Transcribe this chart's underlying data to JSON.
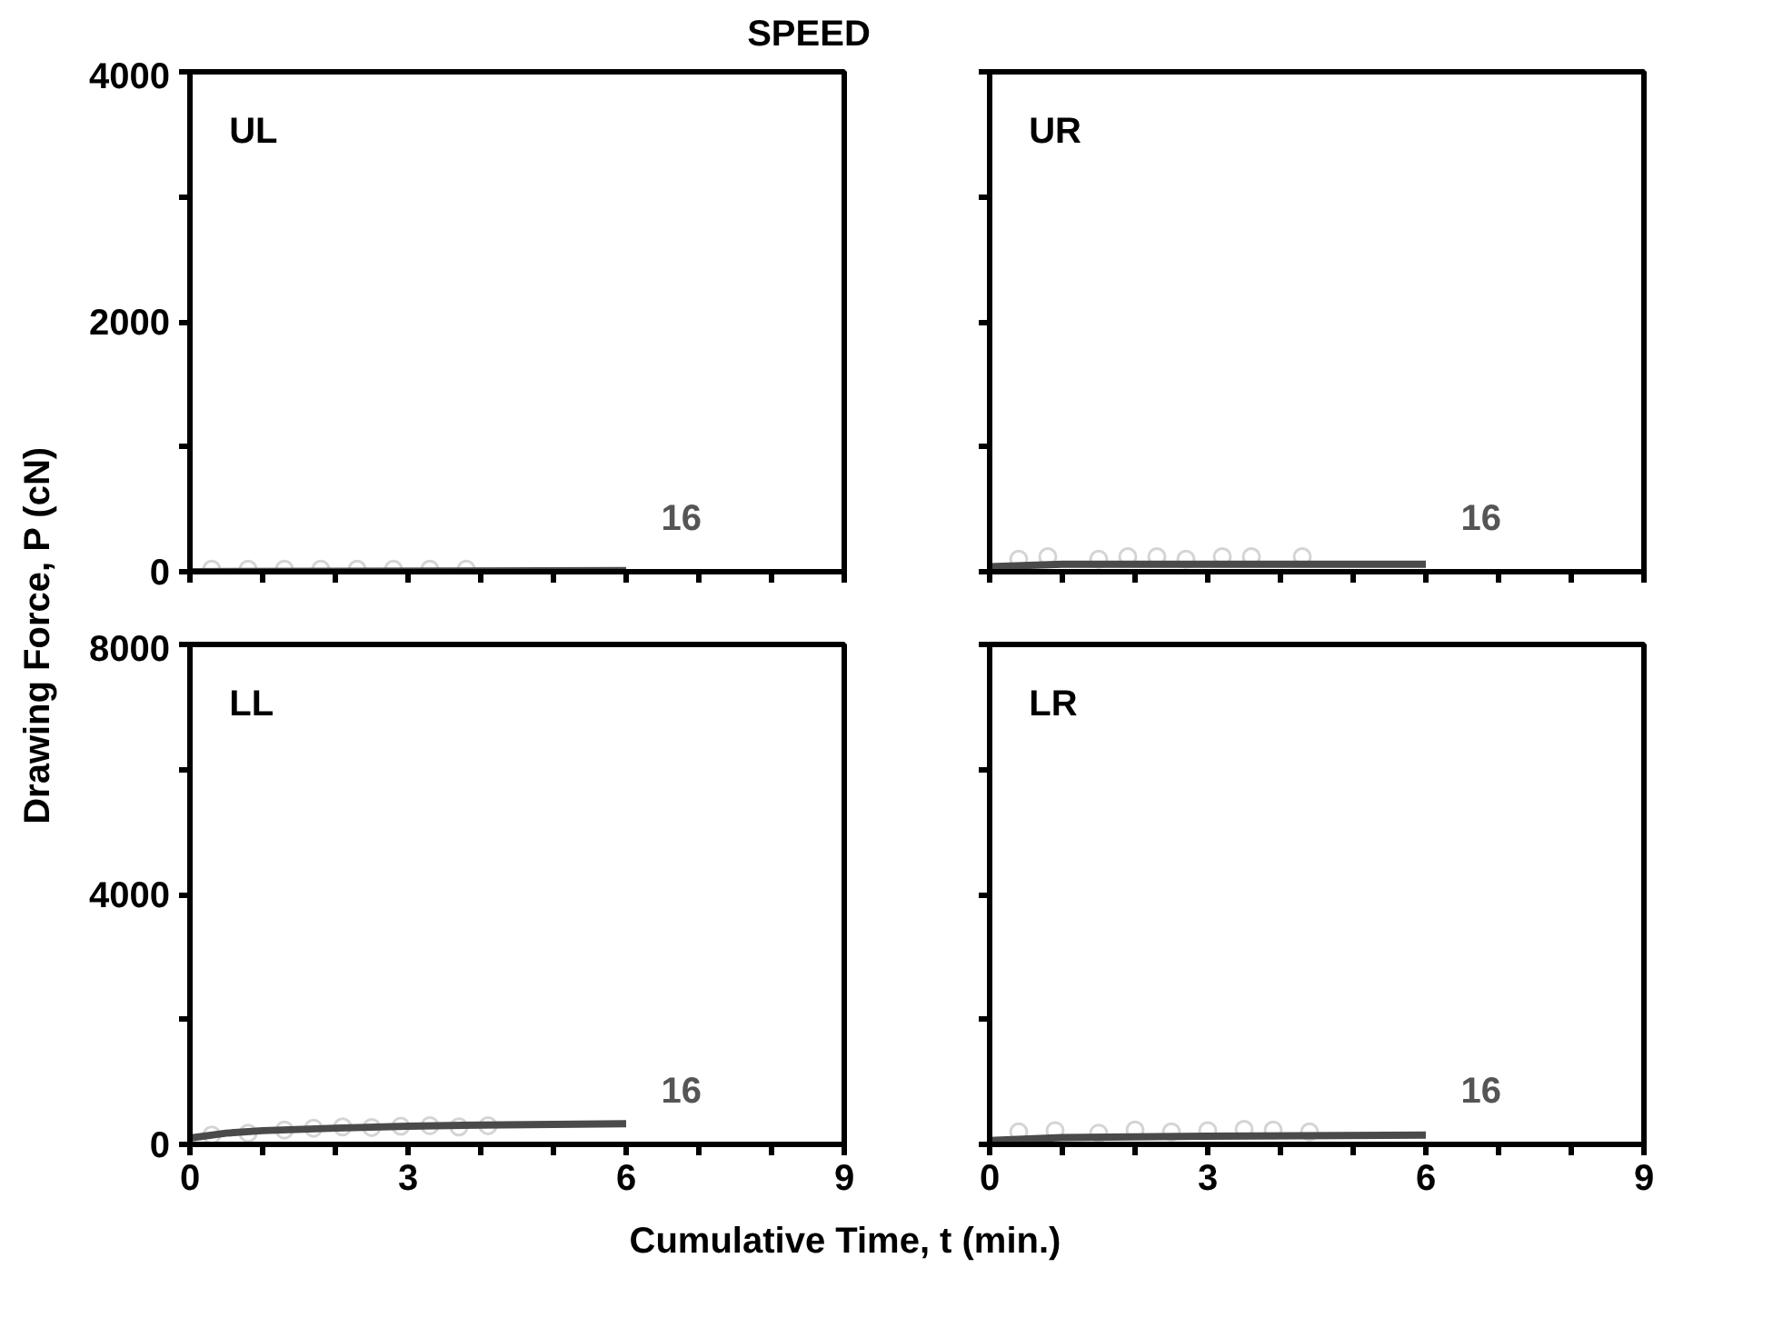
{
  "chart_data": [
    {
      "type": "line",
      "title": "SPEED",
      "ylabel": "Drawing Force, P (cN)",
      "annotations": [
        "UL",
        "16"
      ],
      "tick_labels": "y",
      "grid": false,
      "xlim": [
        0,
        9
      ],
      "ylim": [
        0,
        4000
      ],
      "xticks": [
        0,
        {
          "value": 1,
          "label": null
        },
        {
          "value": 2,
          "label": null
        },
        {
          "value": 3,
          "label": null
        },
        {
          "value": 4,
          "label": null
        },
        {
          "value": 5,
          "label": null
        },
        {
          "value": 6,
          "label": null
        },
        {
          "value": 7,
          "label": null
        },
        {
          "value": 8,
          "label": null
        },
        {
          "value": 9,
          "label": null
        }
      ],
      "yticks": [
        0,
        {
          "value": 1000,
          "label": null
        },
        2000,
        {
          "value": 3000,
          "label": null
        },
        4000
      ],
      "series": [
        {
          "type": "scatter",
          "marker": "circle",
          "color": "#d4d4d4",
          "x": [
            0.3,
            0.8,
            1.3,
            1.8,
            2.3,
            2.8,
            3.3,
            3.8
          ],
          "values": [
            20,
            20,
            20,
            20,
            20,
            20,
            20,
            20
          ]
        },
        {
          "color": "#4a4a4a",
          "x": [
            0,
            6
          ],
          "values": [
            0,
            10
          ]
        }
      ]
    },
    {
      "type": "line",
      "annotations": [
        "UR",
        "16"
      ],
      "tick_labels": false,
      "grid": false,
      "xlim": [
        0,
        9
      ],
      "ylim": [
        0,
        4000
      ],
      "xticks": [
        0,
        {
          "value": 1,
          "label": null
        },
        {
          "value": 2,
          "label": null
        },
        {
          "value": 3,
          "label": null
        },
        {
          "value": 4,
          "label": null
        },
        {
          "value": 5,
          "label": null
        },
        {
          "value": 6,
          "label": null
        },
        {
          "value": 7,
          "label": null
        },
        {
          "value": 8,
          "label": null
        },
        {
          "value": 9,
          "label": null
        }
      ],
      "yticks": [
        0,
        {
          "value": 1000,
          "label": null
        },
        2000,
        {
          "value": 3000,
          "label": null
        },
        4000
      ],
      "series": [
        {
          "type": "scatter",
          "marker": "circle",
          "color": "#d4d4d4",
          "x": [
            0.4,
            0.8,
            1.5,
            1.9,
            2.3,
            2.7,
            3.2,
            3.6,
            4.3
          ],
          "values": [
            100,
            120,
            100,
            120,
            120,
            100,
            120,
            120,
            120
          ]
        },
        {
          "color": "#4a4a4a",
          "x": [
            0,
            1,
            3,
            6
          ],
          "values": [
            40,
            60,
            60,
            60
          ]
        }
      ]
    },
    {
      "type": "line",
      "xlabel": "Cumulative Time, t (min.)",
      "annotations": [
        "LL",
        "16"
      ],
      "grid": false,
      "xlim": [
        0,
        9
      ],
      "ylim": [
        0,
        8000
      ],
      "xticks": [
        0,
        {
          "value": 1,
          "label": null
        },
        {
          "value": 2,
          "label": null
        },
        3,
        {
          "value": 4,
          "label": null
        },
        {
          "value": 5,
          "label": null
        },
        6,
        {
          "value": 7,
          "label": null
        },
        {
          "value": 8,
          "label": null
        },
        9
      ],
      "yticks": [
        0,
        {
          "value": 2000,
          "label": null
        },
        4000,
        {
          "value": 6000,
          "label": null
        },
        8000
      ],
      "series": [
        {
          "type": "scatter",
          "marker": "circle",
          "color": "#d4d4d4",
          "x": [
            0.3,
            0.8,
            1.3,
            1.7,
            2.1,
            2.5,
            2.9,
            3.3,
            3.7,
            4.1
          ],
          "values": [
            150,
            180,
            230,
            260,
            280,
            270,
            290,
            300,
            280,
            300
          ]
        },
        {
          "color": "#4a4a4a",
          "x": [
            0,
            0.5,
            1,
            2,
            3,
            4,
            5,
            6
          ],
          "values": [
            100,
            180,
            220,
            260,
            290,
            310,
            320,
            330
          ]
        }
      ]
    },
    {
      "type": "line",
      "annotations": [
        "LR",
        "16"
      ],
      "tick_labels": "x",
      "grid": false,
      "xlim": [
        0,
        9
      ],
      "ylim": [
        0,
        8000
      ],
      "xticks": [
        0,
        {
          "value": 1,
          "label": null
        },
        {
          "value": 2,
          "label": null
        },
        3,
        {
          "value": 4,
          "label": null
        },
        {
          "value": 5,
          "label": null
        },
        6,
        {
          "value": 7,
          "label": null
        },
        {
          "value": 8,
          "label": null
        },
        9
      ],
      "yticks": [
        0,
        {
          "value": 2000,
          "label": null
        },
        4000,
        {
          "value": 6000,
          "label": null
        },
        8000
      ],
      "series": [
        {
          "type": "scatter",
          "marker": "circle",
          "color": "#d4d4d4",
          "x": [
            0.4,
            0.9,
            1.5,
            2.0,
            2.5,
            3.0,
            3.5,
            3.9,
            4.4
          ],
          "values": [
            200,
            220,
            180,
            230,
            200,
            220,
            240,
            230,
            200
          ]
        },
        {
          "color": "#4a4a4a",
          "x": [
            0,
            1,
            3,
            6
          ],
          "values": [
            60,
            110,
            130,
            150
          ]
        }
      ]
    }
  ]
}
